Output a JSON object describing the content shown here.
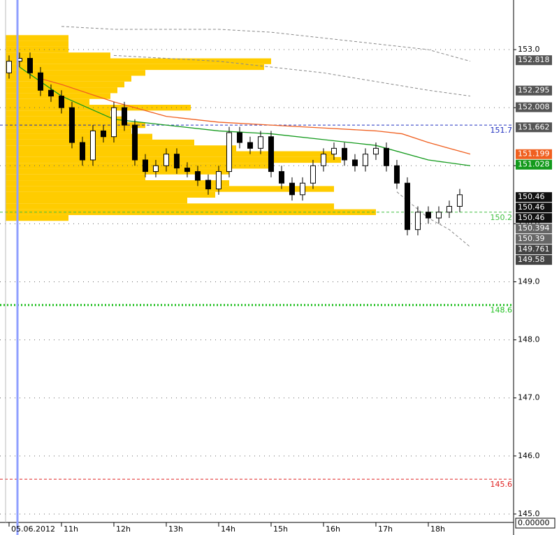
{
  "chart_data": {
    "type": "candlestick",
    "x": [
      10.0,
      10.2,
      10.4,
      10.6,
      10.8,
      11.0,
      11.2,
      11.4,
      11.6,
      11.8,
      12.0,
      12.2,
      12.4,
      12.6,
      12.8,
      13.0,
      13.2,
      13.4,
      13.6,
      13.8,
      14.0,
      14.2,
      14.4,
      14.6,
      14.8,
      15.0,
      15.2,
      15.4,
      15.6,
      15.8,
      16.0,
      16.2,
      16.4,
      16.6,
      16.8,
      17.0,
      17.2,
      17.4,
      17.6,
      17.8,
      18.0,
      18.2,
      18.4,
      18.6
    ],
    "open": [
      152.6,
      152.8,
      152.85,
      152.6,
      152.3,
      152.2,
      152.0,
      151.4,
      151.1,
      151.6,
      151.5,
      152.0,
      151.7,
      151.1,
      150.9,
      151.0,
      151.2,
      150.96,
      150.9,
      150.75,
      150.6,
      150.9,
      151.57,
      151.4,
      151.3,
      151.5,
      150.9,
      150.7,
      150.5,
      150.7,
      151.0,
      151.2,
      151.3,
      151.1,
      151.0,
      151.2,
      151.3,
      151.0,
      150.7,
      149.9,
      150.2,
      150.1,
      150.2,
      150.3
    ],
    "high": [
      152.9,
      152.95,
      152.95,
      152.7,
      152.4,
      152.3,
      152.1,
      151.5,
      151.7,
      151.7,
      152.1,
      152.1,
      151.8,
      151.2,
      151.1,
      151.3,
      151.3,
      151.06,
      151.0,
      150.85,
      151.0,
      151.67,
      151.67,
      151.5,
      151.6,
      151.6,
      151.0,
      150.8,
      150.8,
      151.1,
      151.3,
      151.4,
      151.4,
      151.2,
      151.3,
      151.4,
      151.4,
      151.1,
      150.8,
      150.3,
      150.3,
      150.3,
      150.4,
      150.6
    ],
    "low": [
      152.5,
      152.7,
      152.5,
      152.2,
      152.1,
      151.9,
      151.3,
      151.0,
      151.0,
      151.4,
      151.4,
      151.6,
      151.0,
      150.8,
      150.8,
      150.9,
      150.86,
      150.8,
      150.65,
      150.5,
      150.5,
      150.8,
      151.3,
      151.2,
      151.2,
      150.8,
      150.6,
      150.4,
      150.4,
      150.6,
      150.9,
      151.1,
      151.0,
      150.9,
      150.9,
      151.1,
      150.9,
      150.6,
      149.8,
      149.8,
      150.0,
      150.0,
      150.1,
      150.2
    ],
    "close": [
      152.8,
      152.85,
      152.6,
      152.3,
      152.2,
      152.0,
      151.4,
      151.1,
      151.6,
      151.5,
      152.0,
      151.7,
      151.1,
      150.9,
      151.0,
      151.2,
      150.96,
      150.9,
      150.75,
      150.6,
      150.9,
      151.57,
      151.4,
      151.3,
      151.5,
      150.9,
      150.7,
      150.5,
      150.7,
      151.0,
      151.2,
      151.3,
      151.1,
      151.0,
      151.2,
      151.3,
      151.0,
      150.7,
      149.9,
      150.2,
      150.1,
      150.2,
      150.3,
      150.5
    ],
    "lines": [
      {
        "color": "#139a1c",
        "style": "solid",
        "x": [
          10.2,
          11.0,
          12.0,
          13.0,
          14.0,
          15.0,
          16.0,
          17.0,
          18.0,
          18.8
        ],
        "values": [
          152.7,
          152.2,
          151.8,
          151.7,
          151.6,
          151.55,
          151.45,
          151.35,
          151.1,
          151.0
        ]
      },
      {
        "color": "#f06020",
        "style": "solid",
        "x": [
          10.6,
          11.0,
          12.0,
          13.0,
          14.0,
          15.0,
          16.0,
          17.0,
          17.5,
          18.0,
          18.8
        ],
        "values": [
          152.5,
          152.4,
          152.1,
          151.85,
          151.75,
          151.7,
          151.65,
          151.6,
          151.55,
          151.4,
          151.2
        ]
      },
      {
        "color": "#888888",
        "style": "dashed",
        "x": [
          11.0,
          12.0,
          13.0,
          14.0,
          15.0,
          16.0,
          17.0,
          18.0,
          18.8
        ],
        "values": [
          153.4,
          153.35,
          153.35,
          153.35,
          153.3,
          153.2,
          153.1,
          153.0,
          152.8
        ]
      },
      {
        "color": "#888888",
        "style": "dashed",
        "x": [
          12.0,
          13.0,
          14.0,
          15.0,
          16.0,
          17.0,
          18.0,
          18.8
        ],
        "values": [
          152.9,
          152.85,
          152.8,
          152.7,
          152.6,
          152.45,
          152.3,
          152.2
        ]
      },
      {
        "color": "#888888",
        "style": "dashed",
        "x": [
          17.4,
          18.0,
          18.4,
          18.8
        ],
        "values": [
          150.55,
          150.1,
          149.9,
          149.6
        ]
      }
    ],
    "volume_profile": {
      "levels": [
        153.2,
        153.1,
        153.0,
        152.9,
        152.8,
        152.7,
        152.6,
        152.5,
        152.4,
        152.3,
        152.2,
        152.1,
        152.0,
        151.9,
        151.8,
        151.7,
        151.6,
        151.5,
        151.4,
        151.3,
        151.2,
        151.1,
        151.0,
        150.9,
        150.8,
        150.7,
        150.6,
        150.5,
        150.4,
        150.3,
        150.2,
        150.1
      ],
      "values": [
        90,
        90,
        90,
        150,
        380,
        370,
        200,
        180,
        170,
        160,
        150,
        120,
        265,
        150,
        170,
        200,
        180,
        210,
        270,
        330,
        470,
        480,
        380,
        320,
        200,
        320,
        470,
        300,
        260,
        470,
        530,
        90
      ],
      "color": "#ffcc00"
    },
    "xlim": [
      9.827,
      19.627
    ],
    "xticks": [
      {
        "value": 10,
        "label": "05.06.2012"
      },
      {
        "value": 11,
        "label": "11h"
      },
      {
        "value": 12,
        "label": "12h"
      },
      {
        "value": 13,
        "label": "13h"
      },
      {
        "value": 14,
        "label": "14h"
      },
      {
        "value": 15,
        "label": "15h"
      },
      {
        "value": 16,
        "label": "16h"
      },
      {
        "value": 17,
        "label": "17h"
      },
      {
        "value": 18,
        "label": "18h"
      }
    ],
    "ylim": [
      144.855,
      153.855
    ],
    "yticks": [
      {
        "value": 153,
        "label": "153.0"
      },
      {
        "value": 152,
        "label": "152.0"
      },
      {
        "value": 151,
        "label": "151.0"
      },
      {
        "value": 150,
        "label": "150.0"
      },
      {
        "value": 149,
        "label": "149.0"
      },
      {
        "value": 148,
        "label": "148.0"
      },
      {
        "value": 147,
        "label": "147.0"
      },
      {
        "value": 146,
        "label": "146.0"
      },
      {
        "value": 145,
        "label": "145.0"
      }
    ],
    "grid": true,
    "levels": [
      {
        "value": 151.7,
        "color": "#2030c0",
        "style": "dashed"
      },
      {
        "value": 150.2,
        "color": "#40c040",
        "style": "dashed"
      },
      {
        "value": 148.6,
        "color": "#20c020",
        "style": "dotted"
      },
      {
        "value": 145.6,
        "color": "#e02020",
        "style": "dashed"
      }
    ],
    "price_labels": [
      {
        "value": 152.818,
        "color": "#555555"
      },
      {
        "value": 152.295,
        "color": "#555555"
      },
      {
        "value": 152.008,
        "color": "#555555"
      },
      {
        "value": 151.662,
        "color": "#555555"
      },
      {
        "value": 151.199,
        "color": "#f06020"
      },
      {
        "value": 151.028,
        "color": "#139a1c"
      },
      {
        "value": 150.46,
        "color": "#111111"
      },
      {
        "value": 150.46,
        "color": "#111111"
      },
      {
        "value": 150.46,
        "color": "#111111"
      },
      {
        "value": 150.394,
        "color": "#666666"
      },
      {
        "value": 150.39,
        "color": "#666666"
      },
      {
        "value": 149.761,
        "color": "#444444"
      },
      {
        "value": 149.58,
        "color": "#444444"
      }
    ],
    "corner_label": "0.00000"
  }
}
